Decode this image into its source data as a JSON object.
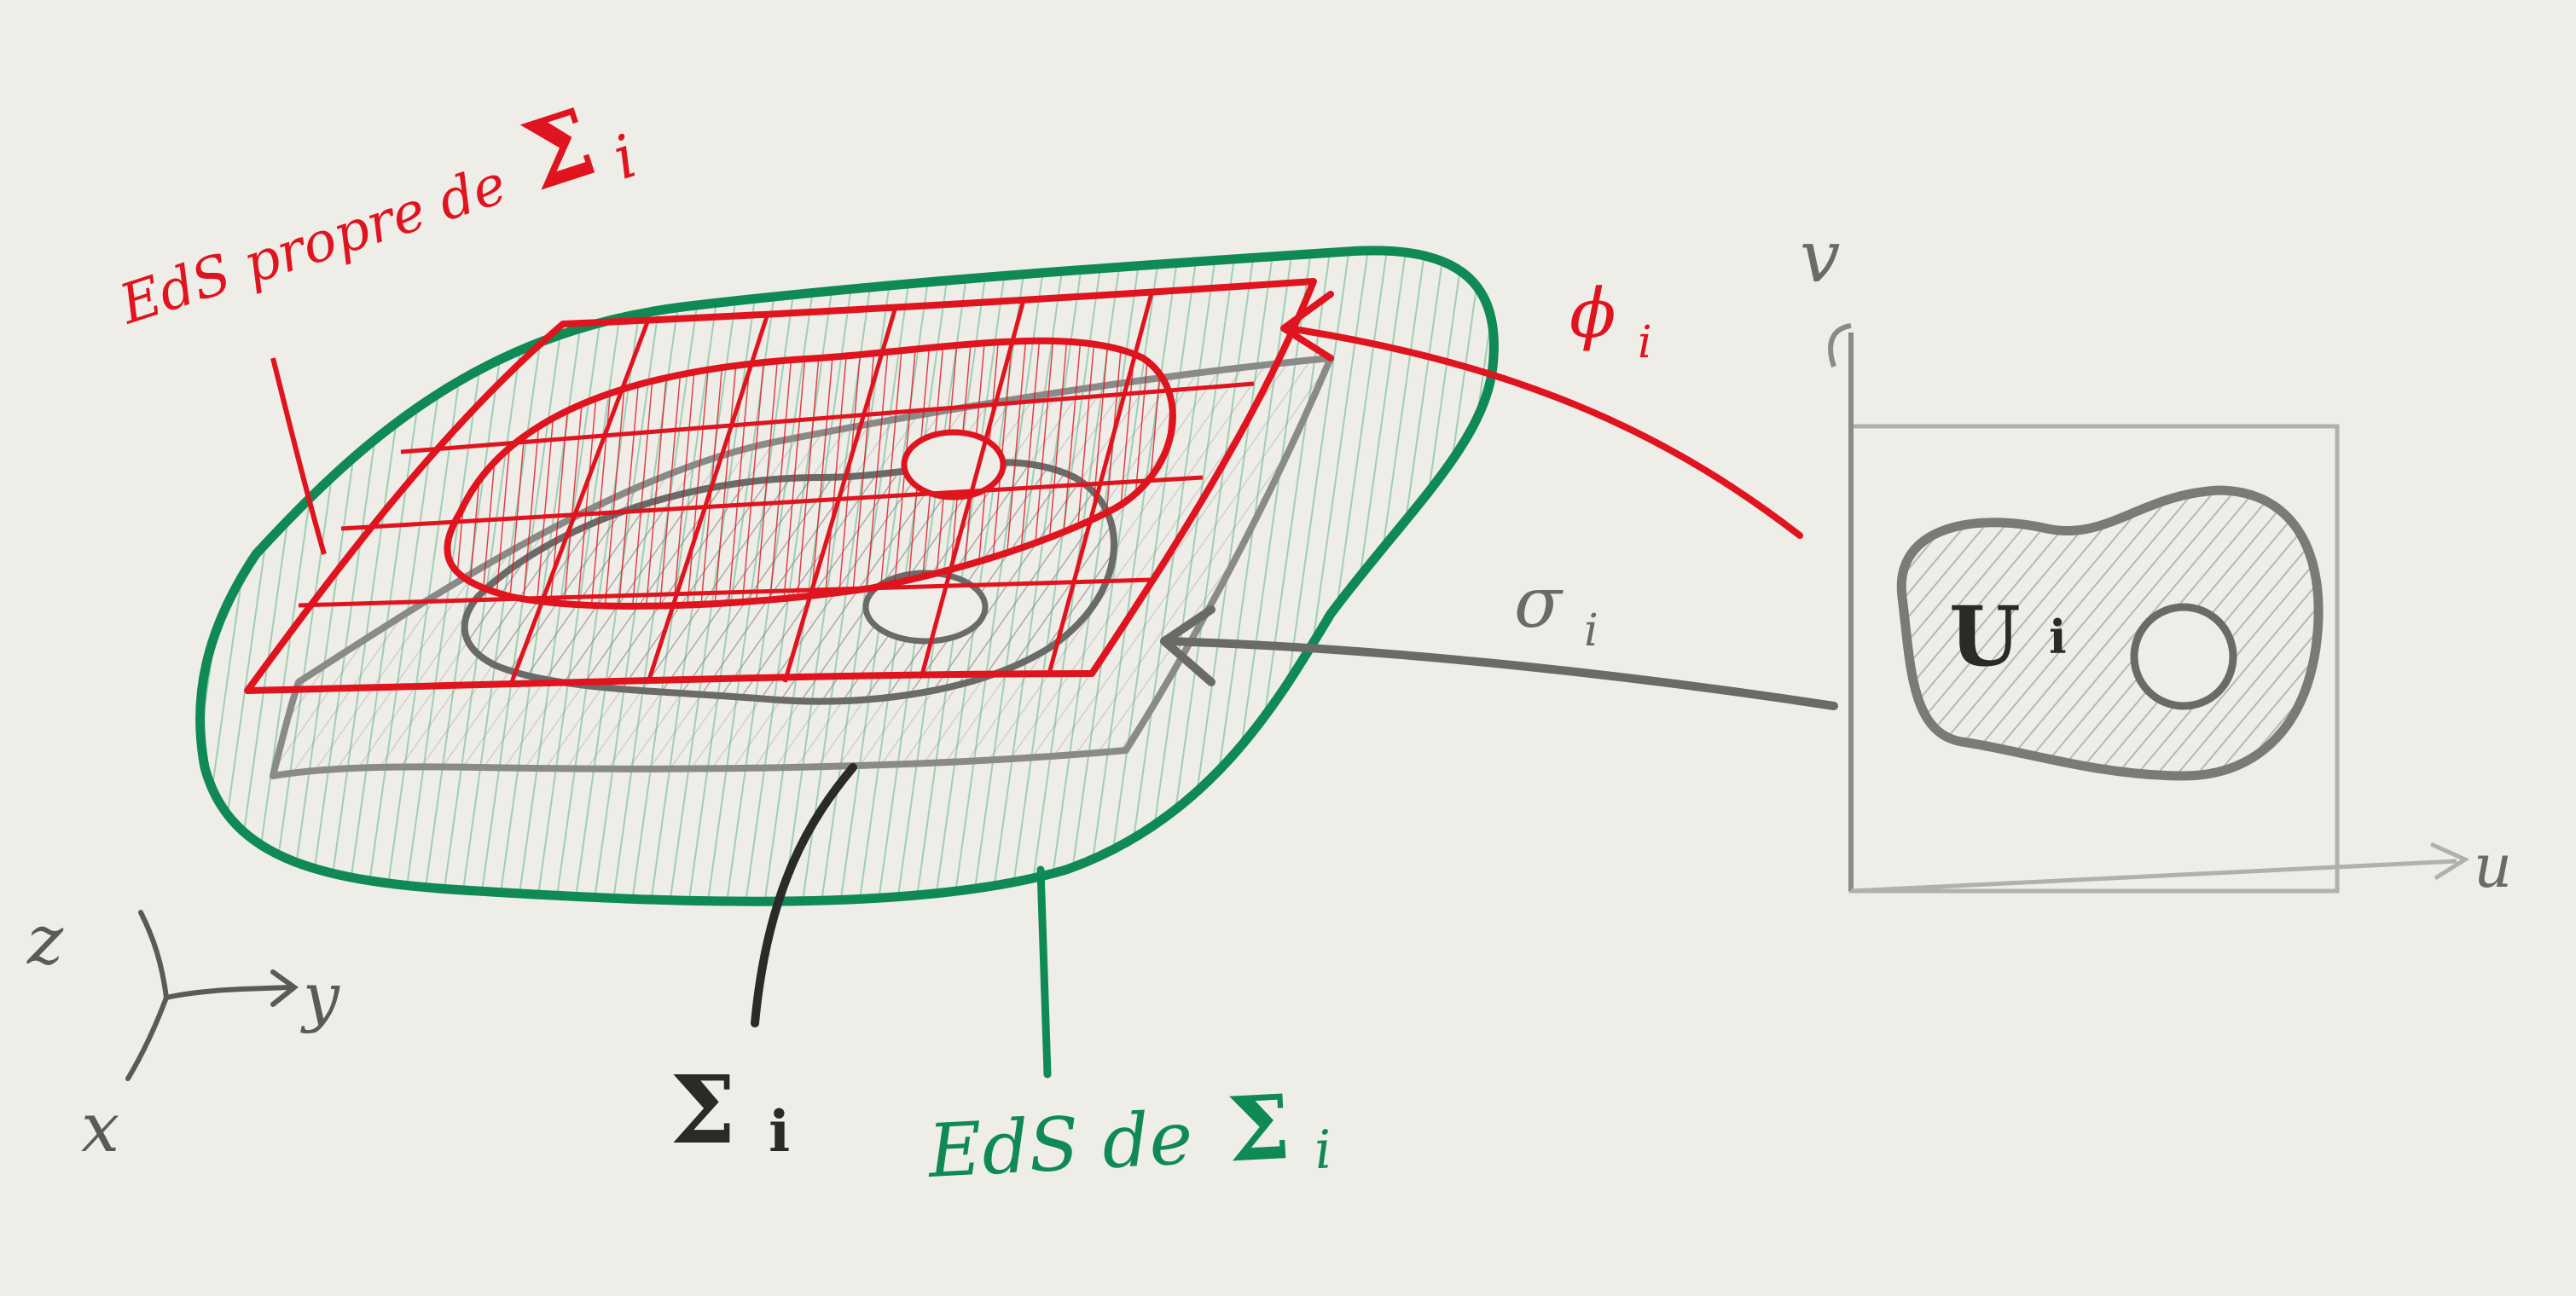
{
  "colors": {
    "paper": "#efede8",
    "red": "#e0141e",
    "green": "#0f8a55",
    "gray": "#7a7a78",
    "dark": "#2a2a28"
  },
  "labels": {
    "red_title_prefix": "EdS propre de",
    "red_title_symbol": "Σ",
    "red_title_sub": "i",
    "phi": "ϕ",
    "phi_sub": "i",
    "sigma": "σ",
    "sigma_sub": "i",
    "domain": "U",
    "domain_sub": "i",
    "sigma_surface": "Σ",
    "sigma_surface_sub": "i",
    "green_prefix": "EdS de",
    "green_symbol": "Σ",
    "green_sub": "i",
    "axis_u": "u",
    "axis_v": "v",
    "axis_x": "x",
    "axis_y": "y",
    "axis_z": "z"
  }
}
